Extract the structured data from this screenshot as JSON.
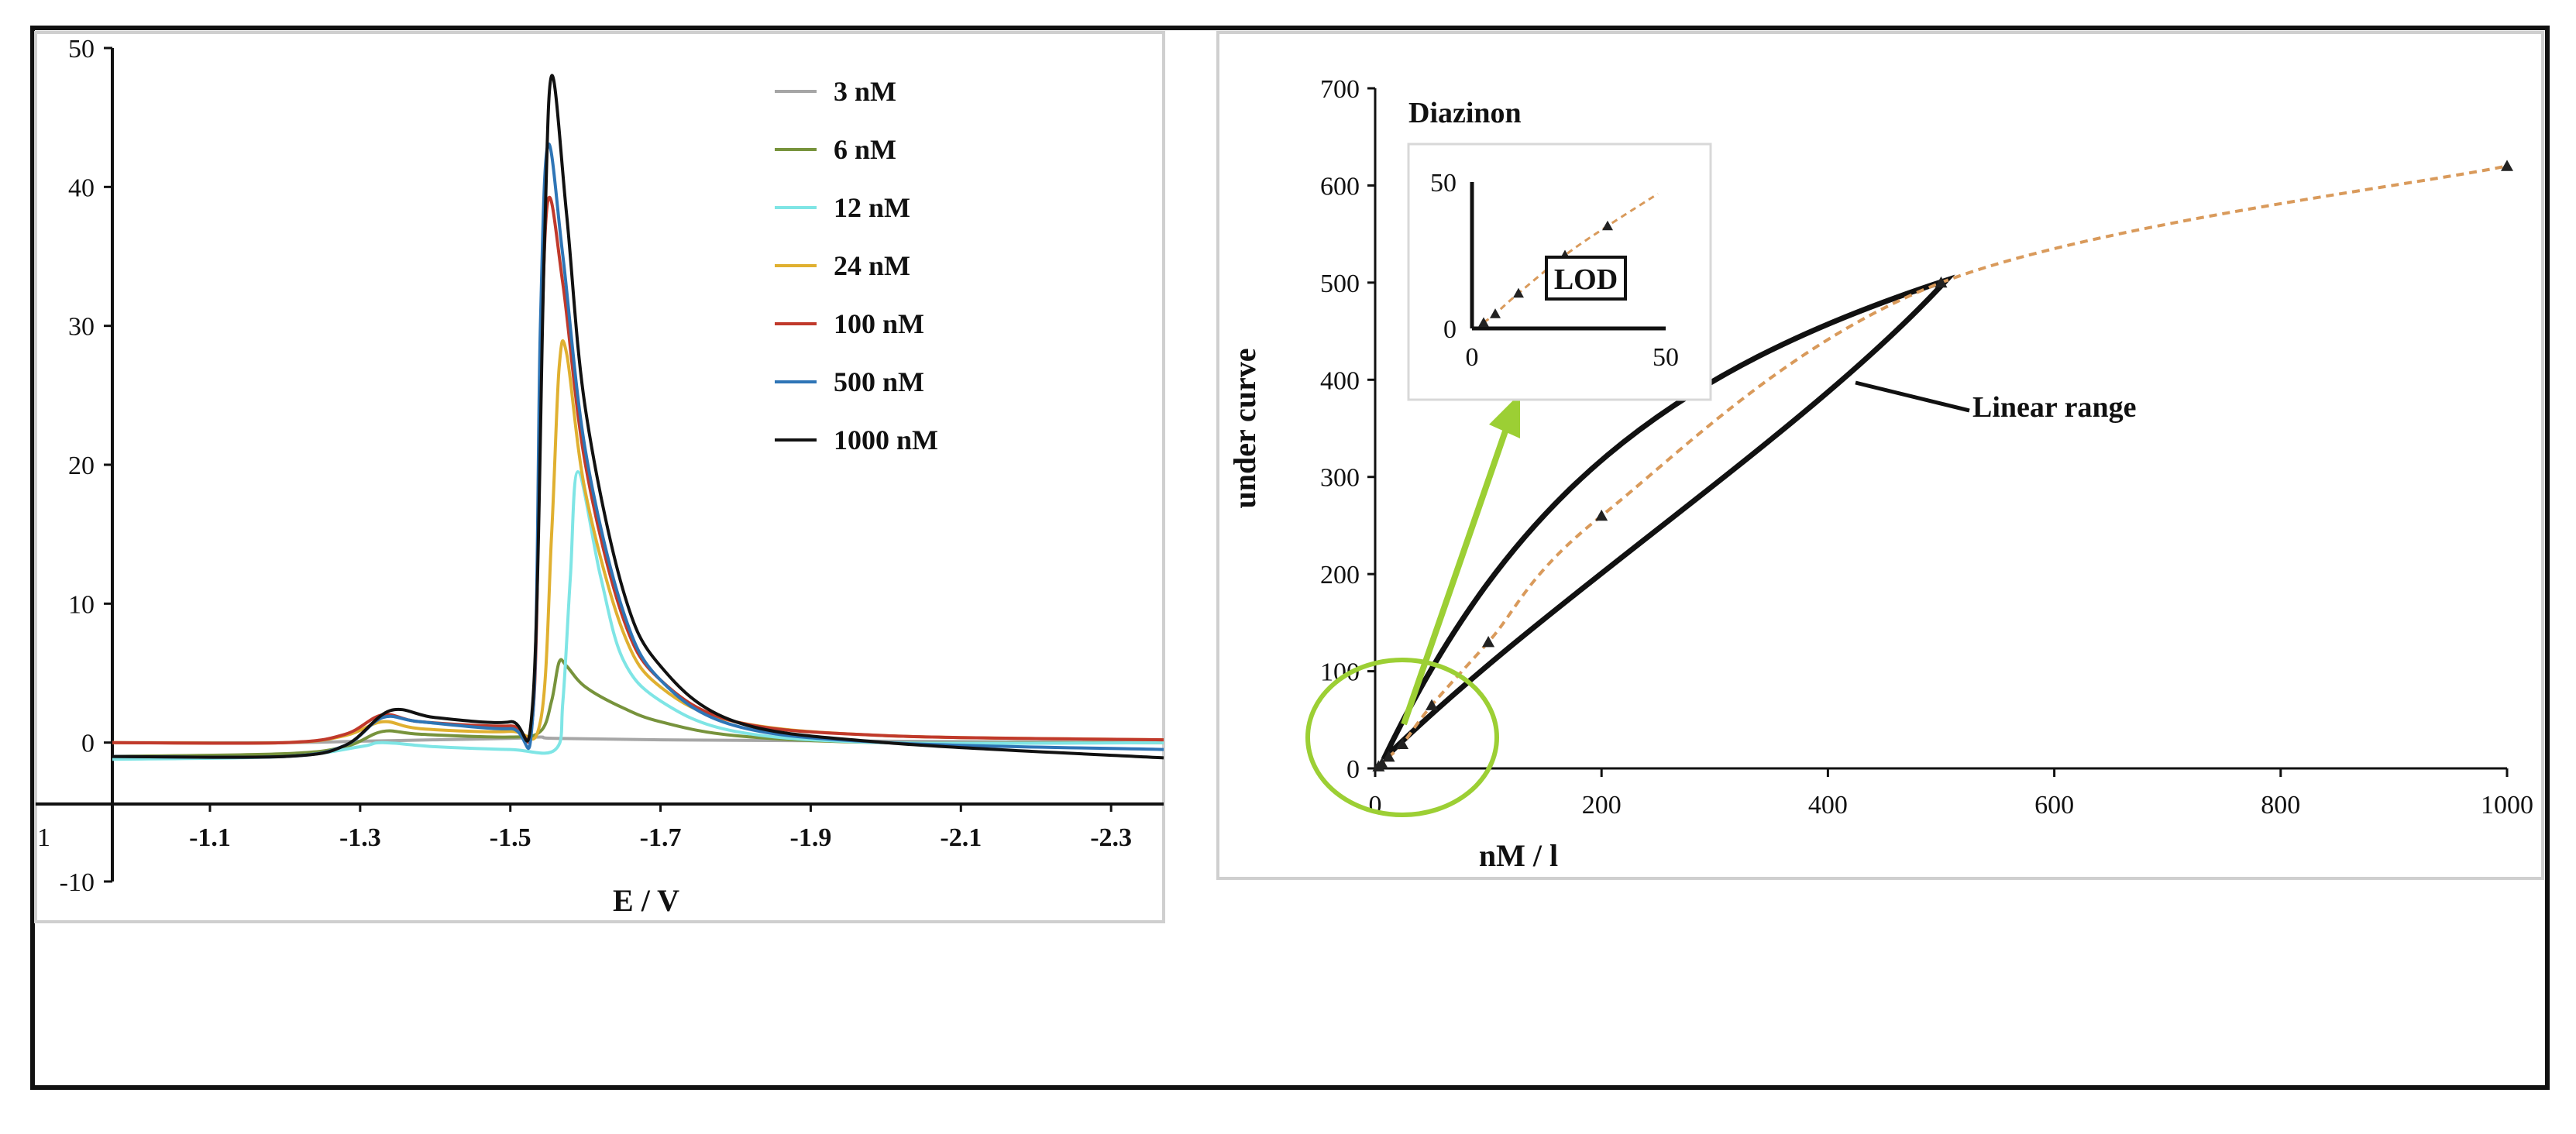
{
  "colors": {
    "frame": "#111111",
    "dashed_fit": "#d99a5b",
    "marker": "#222222",
    "highlight": "#9ccf34"
  },
  "chart_data": [
    {
      "type": "line",
      "xlabel": "E / V",
      "ylabel": "",
      "x_ticks": [
        "-1.1",
        "-1.3",
        "-1.5",
        "-1.7",
        "-1.9",
        "-2.1",
        "-2.3"
      ],
      "y_ticks": [
        "50",
        "40",
        "30",
        "20",
        "10",
        "0",
        "-10"
      ],
      "x_edge_label": "1",
      "xlim": [
        -0.97,
        -2.37
      ],
      "ylim": [
        -10,
        50
      ],
      "grid": false,
      "legend_position": "top-right",
      "series": [
        {
          "name": "3 nM",
          "color": "#a6a6a6",
          "x": [
            -0.97,
            -1.2,
            -1.3,
            -1.4,
            -1.5,
            -1.54,
            -1.56,
            -1.7,
            -2.0,
            -2.37
          ],
          "y": [
            0,
            0,
            0.1,
            0.2,
            0.3,
            0.4,
            0.3,
            0.2,
            0.1,
            0
          ]
        },
        {
          "name": "6 nM",
          "color": "#77933c",
          "x": [
            -0.97,
            -1.2,
            -1.28,
            -1.33,
            -1.38,
            -1.5,
            -1.54,
            -1.555,
            -1.565,
            -1.575,
            -1.6,
            -1.65,
            -1.7,
            -1.8,
            -2.0,
            -2.37
          ],
          "y": [
            -1,
            -0.8,
            -0.3,
            0.8,
            0.6,
            0.4,
            0.8,
            3,
            5.8,
            5.5,
            4,
            2.5,
            1.5,
            0.5,
            0,
            0
          ]
        },
        {
          "name": "12 nM",
          "color": "#7fe5e5",
          "x": [
            -0.97,
            -1.2,
            -1.3,
            -1.33,
            -1.4,
            -1.5,
            -1.56,
            -1.57,
            -1.58,
            -1.59,
            -1.62,
            -1.65,
            -1.7,
            -1.8,
            -2.0,
            -2.37
          ],
          "y": [
            -1.2,
            -1,
            -0.3,
            0,
            -0.3,
            -0.5,
            -0.5,
            3,
            12,
            19.5,
            12,
            6,
            3,
            0.8,
            0,
            0
          ]
        },
        {
          "name": "24 nM",
          "color": "#e0b030",
          "x": [
            -0.97,
            -1.2,
            -1.28,
            -1.33,
            -1.38,
            -1.5,
            -1.54,
            -1.555,
            -1.565,
            -1.575,
            -1.6,
            -1.65,
            -1.7,
            -1.8,
            -2.0,
            -2.37
          ],
          "y": [
            0,
            0,
            0.5,
            1.5,
            1.0,
            0.8,
            1.5,
            15,
            27,
            28,
            18,
            8,
            4,
            1.5,
            0.5,
            0.2
          ]
        },
        {
          "name": "100 nM",
          "color": "#c0392b",
          "x": [
            -0.97,
            -1.2,
            -1.28,
            -1.33,
            -1.38,
            -1.5,
            -1.53,
            -1.54,
            -1.55,
            -1.57,
            -1.6,
            -1.65,
            -1.7,
            -1.8,
            -2.0,
            -2.37
          ],
          "y": [
            0,
            0,
            0.6,
            2.0,
            1.5,
            1.2,
            2,
            25,
            39,
            33,
            20,
            9,
            4.5,
            1.5,
            0.5,
            0.2
          ]
        },
        {
          "name": "500 nM",
          "color": "#2e75b6",
          "x": [
            -0.97,
            -1.2,
            -1.28,
            -1.33,
            -1.38,
            -1.5,
            -1.53,
            -1.54,
            -1.55,
            -1.57,
            -1.6,
            -1.65,
            -1.7,
            -1.8,
            -2.0,
            -2.37
          ],
          "y": [
            -1,
            -1,
            -0.2,
            1.8,
            1.5,
            1.0,
            2,
            30,
            43,
            35,
            21,
            9.5,
            4.5,
            1.2,
            0,
            -0.5
          ]
        },
        {
          "name": "1000 nM",
          "color": "#111111",
          "x": [
            -0.97,
            -1.2,
            -1.28,
            -1.34,
            -1.4,
            -1.5,
            -1.53,
            -1.545,
            -1.555,
            -1.575,
            -1.6,
            -1.65,
            -1.7,
            -1.8,
            -2.0,
            -2.37
          ],
          "y": [
            -1,
            -1,
            -0.2,
            2.3,
            1.8,
            1.5,
            3,
            35,
            48,
            38,
            24,
            11,
            5.5,
            1.5,
            0,
            -1.1
          ]
        }
      ]
    },
    {
      "type": "scatter",
      "title": "",
      "xlabel": "nM / l",
      "ylabel": "under curve",
      "x_ticks": [
        "0",
        "200",
        "400",
        "600",
        "800",
        "1000"
      ],
      "y_ticks": [
        "0",
        "100",
        "200",
        "300",
        "400",
        "500",
        "600",
        "700"
      ],
      "xlim": [
        0,
        1000
      ],
      "ylim": [
        0,
        700
      ],
      "grid": false,
      "series": [
        {
          "name": "Diazinon",
          "marker": "triangle",
          "line": "dashed",
          "x": [
            3,
            6,
            12,
            24,
            50,
            100,
            200,
            500,
            1000
          ],
          "y": [
            2,
            5,
            12,
            25,
            65,
            130,
            260,
            500,
            620
          ]
        }
      ],
      "annotations": {
        "series_label": "Diazinon",
        "linear_range_label": "Linear range",
        "lod_label": "LOD"
      },
      "inset": {
        "x_ticks": [
          "0",
          "50"
        ],
        "y_ticks": [
          "50",
          "0"
        ],
        "xlim": [
          0,
          50
        ],
        "ylim": [
          0,
          50
        ],
        "x": [
          3,
          6,
          12,
          24,
          35
        ],
        "y": [
          2,
          5,
          12,
          25,
          35
        ]
      }
    }
  ]
}
